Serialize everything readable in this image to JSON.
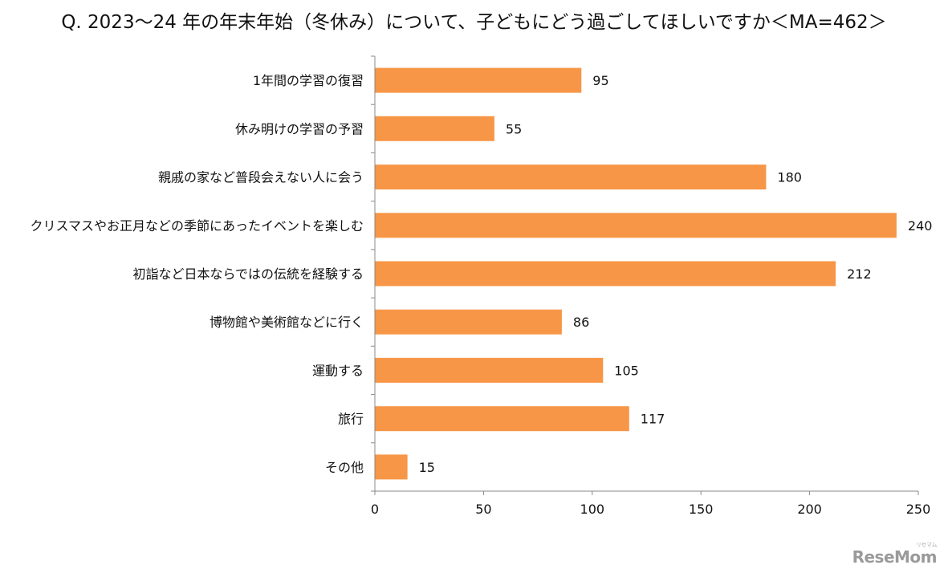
{
  "chart_data": {
    "type": "bar",
    "orientation": "horizontal",
    "title": "Q. 2023～24 年の年末年始（冬休み）について、子どもにどう過ごしてほしいですか＜MA=462＞",
    "categories": [
      "1年間の学習の復習",
      "休み明けの学習の予習",
      "親戚の家など普段会えない人に会う",
      "クリスマスやお正月などの季節にあったイベントを楽しむ",
      "初詣など日本ならではの伝統を経験する",
      "博物館や美術館などに行く",
      "運動する",
      "旅行",
      "その他"
    ],
    "values": [
      95,
      55,
      180,
      240,
      212,
      86,
      105,
      117,
      15
    ],
    "xlim": [
      0,
      250
    ],
    "xticks": [
      "0",
      "50",
      "100",
      "150",
      "200",
      "250"
    ],
    "bar_color": "#F79646",
    "grid": false,
    "legend": "none"
  },
  "watermark": {
    "text": "ReseMom",
    "small": "リセマム"
  }
}
